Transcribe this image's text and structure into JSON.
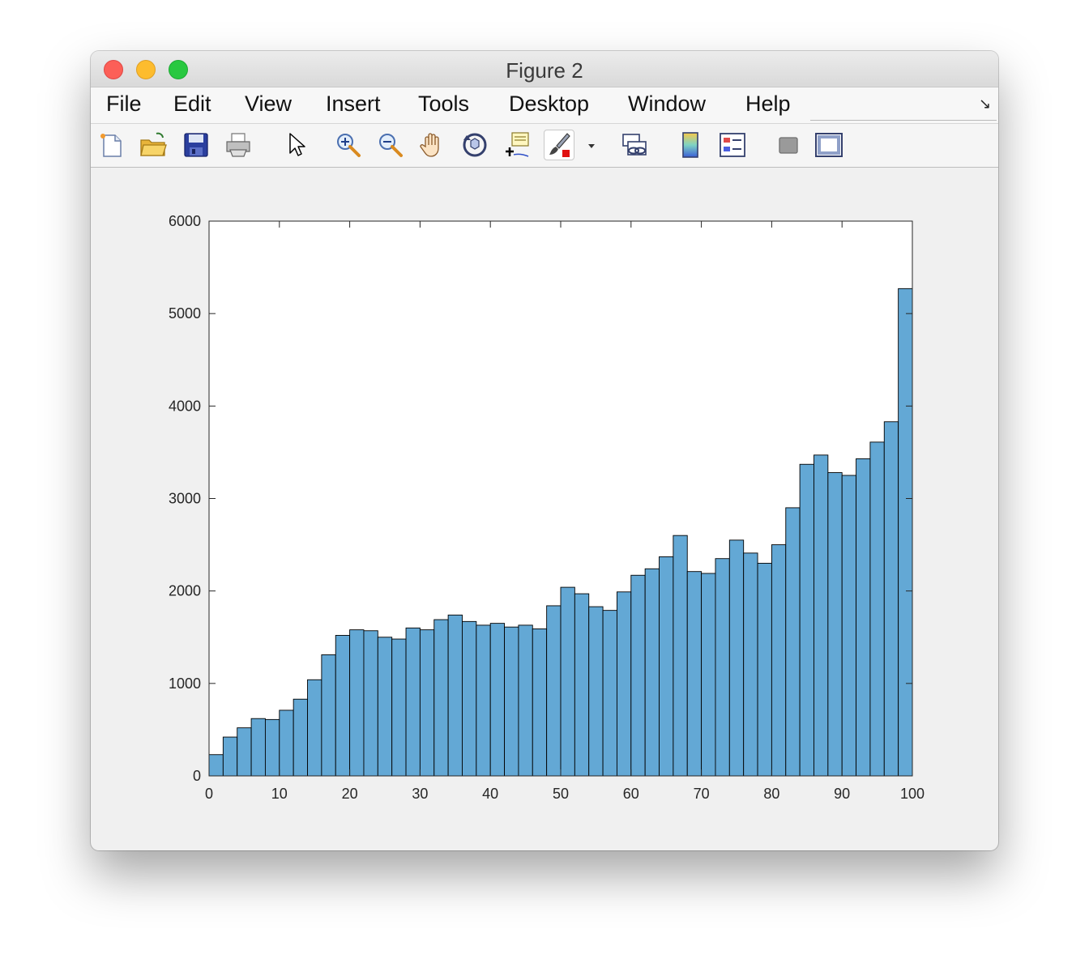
{
  "window": {
    "title": "Figure 2"
  },
  "menu": [
    "File",
    "Edit",
    "View",
    "Insert",
    "Tools",
    "Desktop",
    "Window",
    "Help"
  ],
  "toolbar": {
    "icons": [
      "new-figure-icon",
      "open-file-icon",
      "save-icon",
      "print-icon",
      "pointer-icon",
      "zoom-in-icon",
      "zoom-out-icon",
      "pan-hand-icon",
      "rotate-3d-icon",
      "data-cursor-icon",
      "brush-icon",
      "brush-dropdown-icon",
      "link-plot-icon",
      "colorbar-icon",
      "legend-icon",
      "hide-plot-tools-icon",
      "show-plot-tools-icon"
    ]
  },
  "chart_data": {
    "type": "bar",
    "title": "",
    "xlabel": "",
    "ylabel": "",
    "xlim": [
      0,
      100
    ],
    "ylim": [
      0,
      6000
    ],
    "xticks": [
      0,
      10,
      20,
      30,
      40,
      50,
      60,
      70,
      80,
      90,
      100
    ],
    "yticks": [
      0,
      1000,
      2000,
      3000,
      4000,
      5000,
      6000
    ],
    "bin_width": 2,
    "bin_edges_start": 0,
    "bar_color": "#63a8d5",
    "edge_color": "#000000",
    "grid": false,
    "values": [
      230,
      420,
      520,
      620,
      610,
      710,
      830,
      1040,
      1310,
      1520,
      1580,
      1570,
      1500,
      1480,
      1600,
      1580,
      1690,
      1740,
      1670,
      1630,
      1650,
      1610,
      1630,
      1590,
      1840,
      2040,
      1970,
      1830,
      1790,
      1990,
      2170,
      2240,
      2370,
      2600,
      2210,
      2190,
      2350,
      2550,
      2410,
      2300,
      2500,
      2900,
      3370,
      3470,
      3280,
      3250,
      3430,
      3610,
      3830,
      5270
    ]
  }
}
